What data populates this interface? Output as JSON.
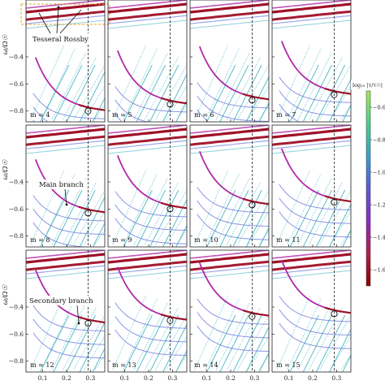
{
  "chart_data": {
    "type": "line",
    "xlabel": "",
    "ylabel": "ω/Ω☉",
    "xlim": [
      0.03,
      0.36
    ],
    "ylim": [
      -0.88,
      0.02
    ],
    "x_ticks": [
      0.1,
      0.2,
      0.3
    ],
    "x_tick_labels": [
      "0.1",
      "0.2",
      "0.3"
    ],
    "y_ticks": [
      -0.4,
      -0.6,
      -0.8
    ],
    "y_tick_labels": [
      "−0.4",
      "−0.6",
      "−0.8"
    ],
    "vline_x": 0.29,
    "panel_labels": [
      "m = 4",
      "m = 5",
      "m = 6",
      "m = 7",
      "m = 8",
      "m = 9",
      "m = 10",
      "m = 11",
      "m = 12",
      "m = 13",
      "m = 14",
      "m = 15"
    ],
    "markers": [
      {
        "m": 4,
        "x": 0.29,
        "y": -0.8
      },
      {
        "m": 5,
        "x": 0.29,
        "y": -0.75
      },
      {
        "m": 6,
        "x": 0.29,
        "y": -0.72
      },
      {
        "m": 7,
        "x": 0.29,
        "y": -0.68
      },
      {
        "m": 8,
        "x": 0.29,
        "y": -0.63
      },
      {
        "m": 9,
        "x": 0.29,
        "y": -0.6
      },
      {
        "m": 10,
        "x": 0.29,
        "y": -0.57
      },
      {
        "m": 11,
        "x": 0.29,
        "y": -0.55
      },
      {
        "m": 12,
        "x": 0.29,
        "y": -0.52
      },
      {
        "m": 13,
        "x": 0.29,
        "y": -0.5
      },
      {
        "m": 14,
        "x": 0.29,
        "y": -0.47
      },
      {
        "m": 15,
        "x": 0.29,
        "y": -0.45
      }
    ],
    "annotations": {
      "tesseral": "Tesseral Rossby",
      "main": "Main branch",
      "secondary": "Secondary branch"
    },
    "colorbar": {
      "label": "log₁₀ |τ/τ☉|",
      "ticks": [
        -0.6,
        -0.8,
        -1.0,
        -1.2,
        -1.4,
        -1.6
      ],
      "tick_labels": [
        "−0.6",
        "−0.8",
        "−1.0",
        "−1.2",
        "−1.4",
        "−1.6"
      ],
      "range": [
        -1.7,
        -0.5
      ],
      "colors": [
        "#8b0000",
        "#b0204a",
        "#8a2cc4",
        "#5a5ad8",
        "#3aa0c8",
        "#4bd08a",
        "#a8e85a"
      ]
    },
    "colors": {
      "rossby": "#a01028",
      "main": "#b02aa8",
      "teal": "#3fb3c0",
      "blue": "#5a6ad8",
      "orange_box": "#e8a030"
    }
  }
}
